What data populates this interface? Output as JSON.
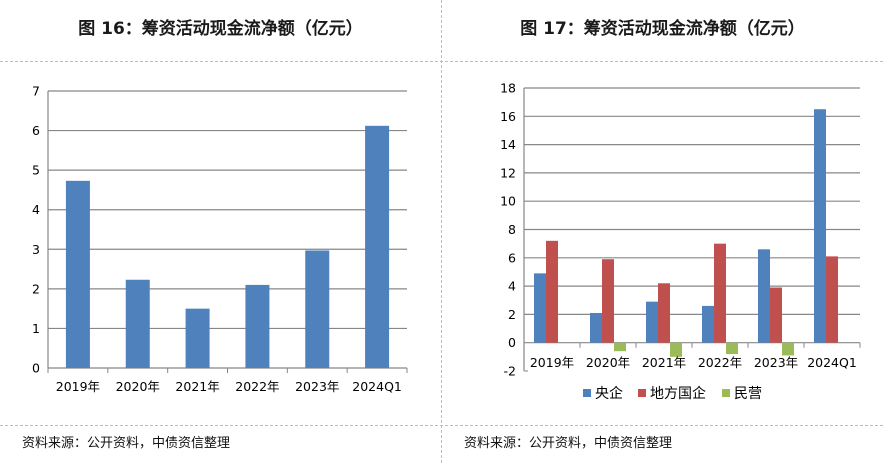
{
  "colors": {
    "blue": "#4f81bd",
    "red": "#c0504d",
    "green": "#9bbb59",
    "grid": "#878787",
    "axis": "#878787",
    "text": "#000000"
  },
  "charts": [
    {
      "title": "图 16：筹资活动现金流净额（亿元）",
      "source": "资料来源：公开资料，中债资信整理",
      "chart_data": {
        "type": "bar",
        "title": "图 16：筹资活动现金流净额（亿元）",
        "categories": [
          "2019年",
          "2020年",
          "2021年",
          "2022年",
          "2023年",
          "2024Q1"
        ],
        "series": [
          {
            "name": "",
            "color": "#4f81bd",
            "values": [
              4.73,
              2.23,
              1.5,
              2.1,
              2.97,
              6.12
            ]
          }
        ],
        "yticks": [
          "0",
          "1",
          "2",
          "3",
          "4",
          "5",
          "6",
          "7"
        ],
        "ylim": [
          0,
          7
        ],
        "grid": true,
        "legend": "none"
      }
    },
    {
      "title": "图 17：筹资活动现金流净额（亿元）",
      "source": "资料来源：公开资料，中债资信整理",
      "chart_data": {
        "type": "bar",
        "title": "图 17：筹资活动现金流净额（亿元）",
        "categories": [
          "2019年",
          "2020年",
          "2021年",
          "2022年",
          "2023年",
          "2024Q1"
        ],
        "series": [
          {
            "name": "央企",
            "color": "#4f81bd",
            "values": [
              4.9,
              2.1,
              2.9,
              2.6,
              6.6,
              16.5
            ]
          },
          {
            "name": "地方国企",
            "color": "#c0504d",
            "values": [
              7.2,
              5.9,
              4.2,
              7.0,
              3.9,
              6.1
            ]
          },
          {
            "name": "民营",
            "color": "#9bbb59",
            "values": [
              0,
              -0.6,
              -1.0,
              -0.8,
              -0.9,
              0
            ]
          }
        ],
        "yticks": [
          "-2",
          "0",
          "2",
          "4",
          "6",
          "8",
          "10",
          "12",
          "14",
          "16",
          "18"
        ],
        "ylim": [
          -2,
          18
        ],
        "grid": true,
        "legend": "bottom"
      }
    }
  ]
}
